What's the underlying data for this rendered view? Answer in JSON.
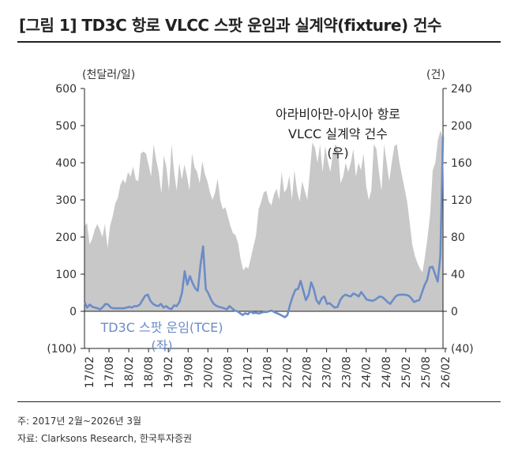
{
  "title": "[그림 1] TD3C 항로 VLCC 스팟 운임과 실계약(fixture) 건수",
  "left_unit": "(천달러/일)",
  "right_unit": "(건)",
  "note": "주: 2017년 2월~2026년 3월",
  "source": "자료: Clarksons Research, 한국투자증권",
  "chart_data": {
    "type": "area",
    "x_ticks": [
      "17/02",
      "17/08",
      "18/02",
      "18/08",
      "19/02",
      "19/08",
      "20/02",
      "20/08",
      "21/02",
      "21/08",
      "22/02",
      "22/08",
      "23/02",
      "23/08",
      "24/02",
      "24/08",
      "25/02",
      "25/08",
      "26/02"
    ],
    "y_left": {
      "label": "(천달러/일)",
      "lim": [
        -100,
        600
      ],
      "ticks": [
        -100,
        0,
        100,
        200,
        300,
        400,
        500,
        600
      ],
      "tick_labels": [
        "(100)",
        "0",
        "100",
        "200",
        "300",
        "400",
        "500",
        "600"
      ]
    },
    "y_right": {
      "label": "(건)",
      "lim": [
        -40,
        240
      ],
      "ticks": [
        -40,
        0,
        40,
        80,
        120,
        160,
        200,
        240
      ],
      "tick_labels": [
        "(40)",
        "0",
        "40",
        "80",
        "120",
        "160",
        "200",
        "240"
      ]
    },
    "grid": false,
    "series": [
      {
        "name": "아라비아만-아시아 항로 VLCC 실계약 건수 (우)",
        "axis": "right",
        "style": "area",
        "color": "#c8c8c8",
        "values": [
          92,
          95,
          72,
          78,
          88,
          94,
          88,
          80,
          94,
          68,
          92,
          102,
          116,
          122,
          136,
          142,
          138,
          150,
          145,
          156,
          142,
          140,
          170,
          172,
          170,
          158,
          145,
          180,
          163,
          150,
          127,
          168,
          155,
          130,
          180,
          150,
          130,
          160,
          142,
          158,
          146,
          130,
          170,
          155,
          150,
          138,
          162,
          148,
          140,
          128,
          120,
          128,
          143,
          120,
          110,
          112,
          102,
          92,
          84,
          82,
          73,
          56,
          44,
          48,
          46,
          58,
          70,
          82,
          110,
          118,
          128,
          130,
          118,
          114,
          126,
          132,
          120,
          150,
          128,
          132,
          146,
          120,
          152,
          130,
          118,
          140,
          130,
          120,
          150,
          182,
          176,
          160,
          180,
          150,
          178,
          162,
          150,
          170,
          180,
          175,
          138,
          145,
          160,
          150,
          160,
          175,
          145,
          160,
          152,
          170,
          135,
          120,
          130,
          180,
          175,
          150,
          130,
          180,
          160,
          140,
          160,
          178,
          180,
          160,
          146,
          132,
          118,
          96,
          72,
          60,
          52,
          46,
          42,
          60,
          80,
          105,
          152,
          160,
          184,
          195,
          186
        ]
      },
      {
        "name": "TD3C 스팟 운임(TCE) (좌)",
        "axis": "left",
        "style": "line",
        "color": "#6b8cc7",
        "values": [
          25,
          10,
          18,
          12,
          10,
          8,
          5,
          12,
          20,
          18,
          10,
          8,
          8,
          8,
          8,
          8,
          10,
          12,
          10,
          14,
          14,
          18,
          30,
          42,
          45,
          28,
          20,
          16,
          14,
          20,
          10,
          14,
          8,
          6,
          16,
          14,
          25,
          50,
          108,
          72,
          95,
          76,
          62,
          55,
          125,
          175,
          60,
          48,
          32,
          20,
          15,
          12,
          10,
          8,
          5,
          14,
          8,
          2,
          0,
          -5,
          -10,
          -5,
          -8,
          0,
          -5,
          -4,
          -6,
          -4,
          -2,
          -2,
          0,
          2,
          -2,
          -5,
          -8,
          -12,
          -16,
          -10,
          18,
          40,
          58,
          60,
          82,
          55,
          30,
          44,
          78,
          60,
          30,
          20,
          35,
          40,
          20,
          22,
          15,
          10,
          12,
          30,
          40,
          45,
          42,
          40,
          48,
          45,
          40,
          52,
          42,
          32,
          30,
          28,
          30,
          35,
          40,
          38,
          32,
          25,
          20,
          30,
          40,
          44,
          45,
          45,
          44,
          42,
          35,
          25,
          28,
          30,
          50,
          70,
          85,
          118,
          120,
          100,
          80,
          150,
          470
        ]
      }
    ],
    "annotations": [
      "아라비아만-아시아 항로",
      "VLCC 실계약 건수",
      "(우)",
      "TD3C 스팟 운임(TCE)",
      "(좌)"
    ]
  }
}
